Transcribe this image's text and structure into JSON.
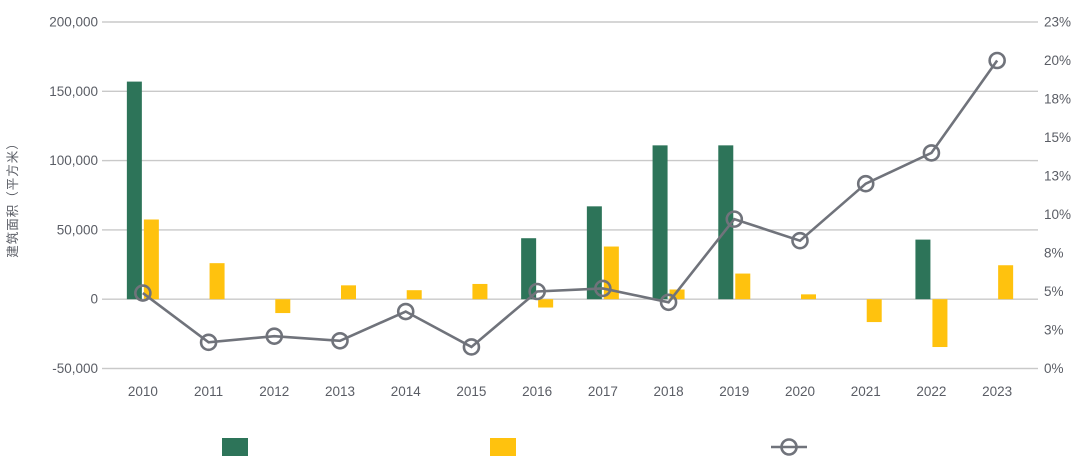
{
  "chart_data": {
    "type": "combo",
    "categories": [
      "2010",
      "2011",
      "2012",
      "2013",
      "2014",
      "2015",
      "2016",
      "2017",
      "2018",
      "2019",
      "2020",
      "2021",
      "2022",
      "2023"
    ],
    "series": [
      {
        "id": "green-bars",
        "type": "bar",
        "axis": "left",
        "color": "#2d7459",
        "values": [
          157000,
          null,
          null,
          null,
          null,
          null,
          44000,
          67000,
          111000,
          111000,
          null,
          null,
          43000,
          null
        ]
      },
      {
        "id": "yellow-bars",
        "type": "bar",
        "axis": "left",
        "color": "#ffc20e",
        "values": [
          57500,
          26000,
          -10000,
          10000,
          6500,
          11000,
          -6000,
          38000,
          7000,
          18500,
          3500,
          -16500,
          -34500,
          24500
        ]
      },
      {
        "id": "line-series",
        "type": "line",
        "axis": "right",
        "color": "#70737b",
        "values": [
          4.9,
          1.7,
          2.1,
          1.8,
          3.7,
          1.4,
          5.0,
          5.2,
          4.3,
          9.7,
          8.3,
          12.0,
          14.0,
          20.0
        ]
      }
    ],
    "left_axis": {
      "title": "建筑面积（平方米）",
      "min": -50000,
      "max": 200000,
      "tick_values": [
        200000,
        150000,
        100000,
        50000,
        0,
        -50000
      ],
      "tick_labels": [
        "200,000",
        "150,000",
        "100,000",
        "50,000",
        "0",
        "-50,000"
      ]
    },
    "right_axis": {
      "min": 0,
      "max": 22.5,
      "tick_labels": [
        "23%",
        "20%",
        "18%",
        "15%",
        "13%",
        "10%",
        "8%",
        "5%",
        "3%",
        "0%"
      ]
    },
    "grid": true,
    "legend": [
      {
        "swatch": "green-square",
        "color": "#2d7459",
        "label": ""
      },
      {
        "swatch": "yellow-square",
        "color": "#ffc20e",
        "label": ""
      },
      {
        "swatch": "line-marker",
        "color": "#70737b",
        "label": ""
      }
    ],
    "colors": {
      "grid": "#c9c9c9",
      "text": "#5a5d65"
    }
  }
}
